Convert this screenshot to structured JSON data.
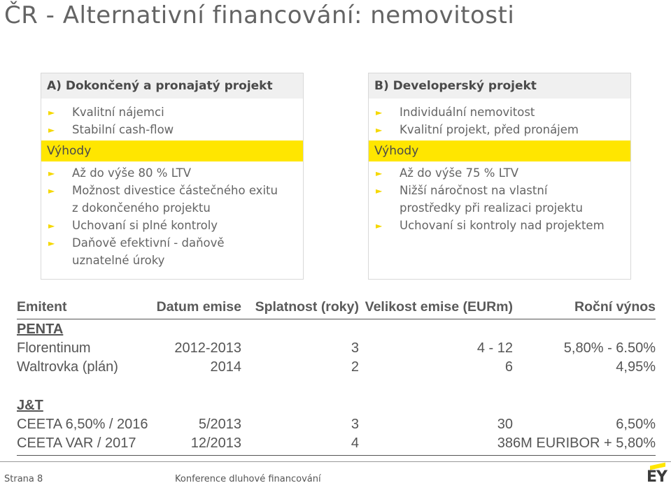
{
  "title": "ČR - Alternativní financování: nemovitosti",
  "box_a": {
    "heading": "A) Dokončený a pronajatý projekt",
    "items": [
      "Kvalitní nájemci",
      "Stabilní cash-flow"
    ],
    "band": "Výhody",
    "advantages": [
      "Až do výše 80 % LTV",
      "Možnost divestice částečného exitu\nz dokončeného projektu",
      "Uchovaní si plné kontroly",
      "Daňově efektivní - daňově\nuznatelné úroky"
    ]
  },
  "box_b": {
    "heading": "B) Developerský projekt",
    "items": [
      "Individuální nemovitost",
      "Kvalitní projekt, před pronájem"
    ],
    "band": "Výhody",
    "advantages": [
      "Až do výše 75 % LTV",
      "Nižší náročnost na vlastní\nprostředky při realizaci projektu",
      "Uchovaní si kontroly nad projektem"
    ]
  },
  "table": {
    "headers": [
      "Emitent",
      "Datum emise",
      "Splatnost (roky)",
      "Velikost emise (EURm)",
      "Roční výnos"
    ],
    "groups": [
      {
        "label": "PENTA",
        "rows": [
          [
            "Florentinum",
            "2012-2013",
            "3",
            "4 - 12",
            "5,80% - 6.50%"
          ],
          [
            "Waltrovka (plán)",
            "2014",
            "2",
            "6",
            "4,95%"
          ]
        ]
      },
      {
        "label": "J&T",
        "rows": [
          [
            "CEETA 6,50% / 2016",
            "5/2013",
            "3",
            "30",
            "6,50%"
          ],
          [
            "CEETA VAR / 2017",
            "12/2013",
            "4",
            "38",
            "6M EURIBOR + 5,80%"
          ]
        ]
      }
    ]
  },
  "footer": {
    "page": "Strana 8",
    "conference": "Konference dluhové financování",
    "logo": "EY"
  },
  "colors": {
    "accent": "#ffe600",
    "text": "#646464",
    "header_bg": "#f0f0f0"
  }
}
